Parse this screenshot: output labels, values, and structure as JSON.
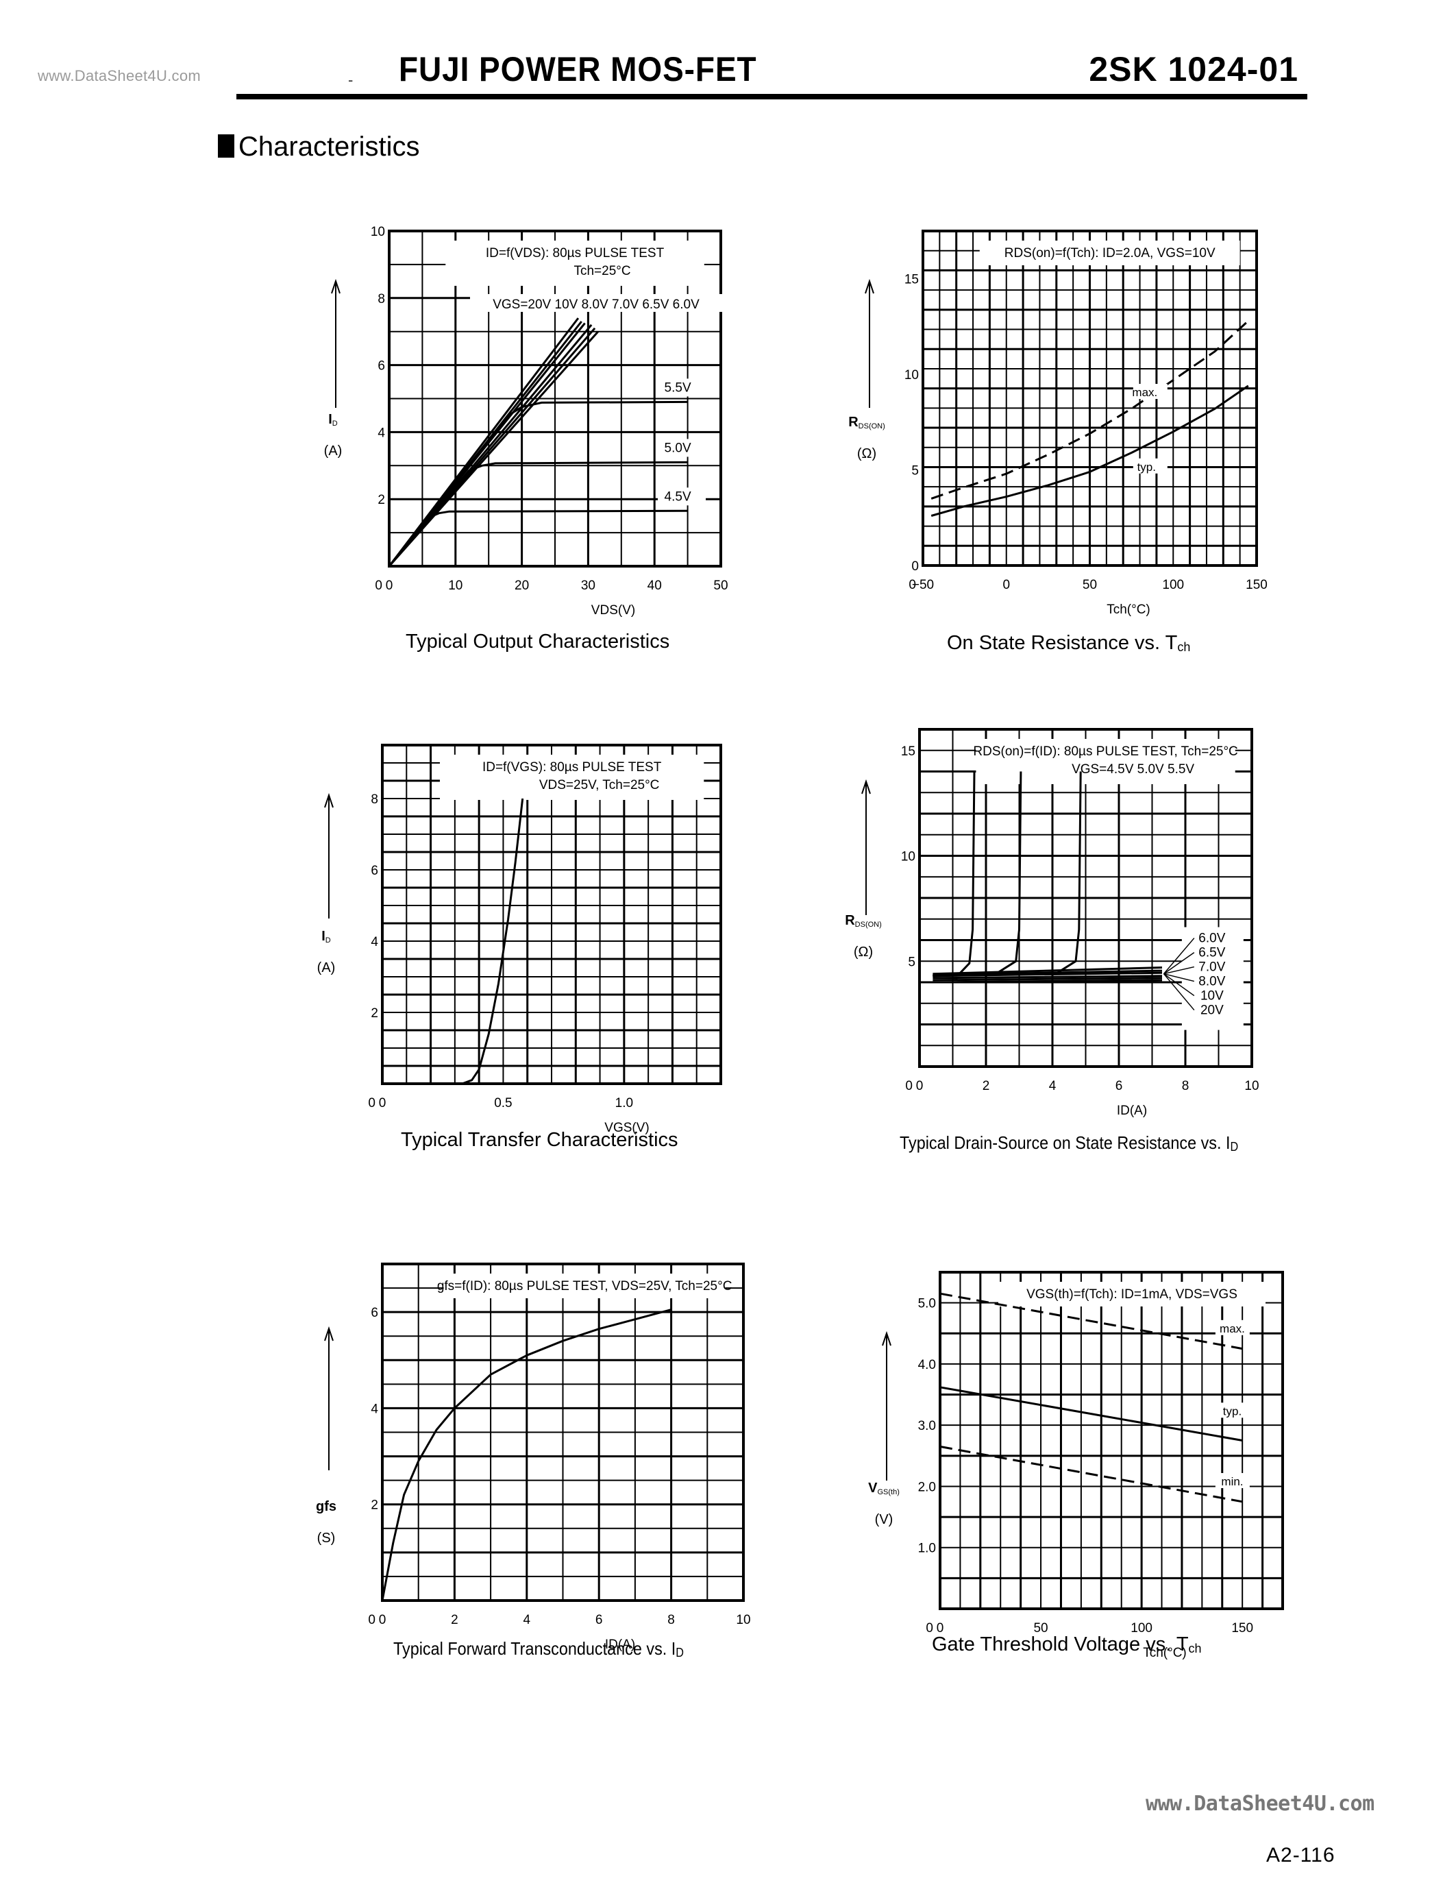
{
  "header": {
    "watermark": "www.DataSheet4U.com",
    "title": "FUJI POWER MOS-FET",
    "part_number": "2SK 1024-01"
  },
  "section": {
    "title": "Characteristics"
  },
  "footer": {
    "watermark": "www.DataSheet4U.com",
    "page_number": "A2-116"
  },
  "captions": {
    "output": "Typical Output Characteristics",
    "on_state_temp": "On State Resistance vs. T",
    "on_state_temp_sub": "ch",
    "transfer": "Typical Transfer Characteristics",
    "drain_source": "Typical Drain-Source on State Resistance vs. I",
    "drain_source_sub": "D",
    "transconductance": "Typical Forward Transconductance vs. I",
    "transconductance_sub": "D",
    "gate_threshold": "Gate Threshold Voltage vs. T",
    "gate_threshold_sub": "ch"
  },
  "chart_data": [
    {
      "id": "output",
      "type": "line",
      "title": "Typical Output Characteristics",
      "annotation": [
        "ID=f(VDS): 80µs PULSE TEST",
        "Tch=25°C"
      ],
      "xlabel": "VDS(V)",
      "ylabel": "ID (A)",
      "xlim": [
        0,
        50
      ],
      "ylim": [
        0,
        10
      ],
      "xticks": [
        0,
        10,
        20,
        30,
        40,
        50
      ],
      "yticks": [
        2,
        4,
        6,
        8,
        10
      ],
      "grid": true,
      "legend_label": "VGS=20V 10V 8.0V 7.0V 6.5V 6.0V",
      "series": [
        {
          "name": "VGS=20V",
          "x": [
            0,
            28.5
          ],
          "y": [
            0,
            7.4
          ]
        },
        {
          "name": "VGS=10V",
          "x": [
            0,
            29
          ],
          "y": [
            0,
            7.3
          ]
        },
        {
          "name": "VGS=8.0V",
          "x": [
            0,
            29.5
          ],
          "y": [
            0,
            7.25
          ]
        },
        {
          "name": "VGS=7.0V",
          "x": [
            0,
            30.5
          ],
          "y": [
            0,
            7.2
          ]
        },
        {
          "name": "VGS=6.5V",
          "x": [
            0,
            31
          ],
          "y": [
            0,
            7.1
          ]
        },
        {
          "name": "VGS=6.0V",
          "x": [
            0,
            31.5
          ],
          "y": [
            0,
            7.0
          ]
        },
        {
          "name": "VGS=5.5V",
          "x": [
            0,
            18,
            20,
            23,
            45
          ],
          "y": [
            0,
            4.5,
            4.75,
            4.88,
            4.9
          ]
        },
        {
          "name": "VGS=5.0V",
          "x": [
            0,
            12,
            14,
            16,
            45
          ],
          "y": [
            0,
            2.85,
            3.0,
            3.07,
            3.1
          ]
        },
        {
          "name": "VGS=4.5V",
          "x": [
            0,
            6,
            7.5,
            9,
            45
          ],
          "y": [
            0,
            1.45,
            1.58,
            1.63,
            1.65
          ]
        }
      ]
    },
    {
      "id": "on_state_temp",
      "type": "line",
      "title": "On State Resistance vs. Tch",
      "annotation": "RDS(on)=f(Tch): ID=2.0A, VGS=10V",
      "xlabel": "Tch(°C)",
      "ylabel": "RDS(ON) (Ω)",
      "xlim": [
        -50,
        150
      ],
      "ylim": [
        0,
        17.5
      ],
      "xticks": [
        -50,
        0,
        50,
        100,
        150
      ],
      "yticks": [
        0,
        5,
        10,
        15
      ],
      "grid": true,
      "series": [
        {
          "name": "max.",
          "style": "dashed",
          "x": [
            -45,
            -25,
            0,
            25,
            50,
            75,
            100,
            125,
            145
          ],
          "y": [
            3.5,
            4.1,
            4.8,
            5.8,
            6.9,
            8.2,
            9.7,
            11.2,
            12.8
          ]
        },
        {
          "name": "typ.",
          "style": "solid",
          "x": [
            -45,
            -25,
            0,
            25,
            50,
            75,
            100,
            125,
            145
          ],
          "y": [
            2.6,
            3.1,
            3.6,
            4.2,
            4.9,
            5.9,
            7.0,
            8.2,
            9.4
          ]
        }
      ]
    },
    {
      "id": "transfer",
      "type": "line",
      "title": "Typical Transfer Characteristics",
      "annotation": [
        "ID=f(VGS): 80µs PULSE TEST",
        "VDS=25V, Tch=25°C"
      ],
      "xlabel": "VGS(V)",
      "ylabel": "ID (A)",
      "xlim": [
        0,
        1.4
      ],
      "ylim": [
        0,
        9.5
      ],
      "xticks": [
        0,
        0.5,
        1.0
      ],
      "yticks": [
        2,
        4,
        6,
        8
      ],
      "grid": true,
      "series": [
        {
          "name": "ID",
          "x": [
            0.33,
            0.37,
            0.4,
            0.44,
            0.48,
            0.52,
            0.55,
            0.58
          ],
          "y": [
            0,
            0.1,
            0.4,
            1.4,
            2.8,
            4.6,
            6.2,
            8.0
          ]
        }
      ]
    },
    {
      "id": "drain_source",
      "type": "line",
      "title": "Typical Drain-Source on State Resistance vs. ID",
      "annotation": [
        "RDS(on)=f(ID): 80µs PULSE TEST, Tch=25°C",
        "VGS=4.5V 5.0V 5.5V"
      ],
      "xlabel": "ID(A)",
      "ylabel": "RDS(ON) (Ω)",
      "xlim": [
        0,
        10
      ],
      "ylim": [
        0,
        16
      ],
      "xticks": [
        0,
        2,
        4,
        6,
        8,
        10
      ],
      "yticks": [
        5,
        10,
        15
      ],
      "grid": true,
      "series": [
        {
          "name": "VGS=4.5V",
          "x": [
            0.4,
            1.2,
            1.5,
            1.6,
            1.65
          ],
          "y": [
            4.3,
            4.4,
            4.9,
            6.5,
            14
          ]
        },
        {
          "name": "VGS=5.0V",
          "x": [
            0.4,
            2.3,
            2.9,
            3.0,
            3.05
          ],
          "y": [
            4.3,
            4.4,
            5.0,
            6.5,
            14
          ]
        },
        {
          "name": "VGS=5.5V",
          "x": [
            0.4,
            4.1,
            4.7,
            4.8,
            4.85
          ],
          "y": [
            4.3,
            4.4,
            5.0,
            6.5,
            14
          ]
        },
        {
          "name": "VGS=6.0V",
          "x": [
            0.4,
            7.3
          ],
          "y": [
            4.4,
            4.7
          ]
        },
        {
          "name": "VGS=6.5V",
          "x": [
            0.4,
            7.3
          ],
          "y": [
            4.35,
            4.55
          ]
        },
        {
          "name": "VGS=7.0V",
          "x": [
            0.4,
            7.3
          ],
          "y": [
            4.3,
            4.45
          ]
        },
        {
          "name": "VGS=8.0V",
          "x": [
            0.4,
            7.3
          ],
          "y": [
            4.2,
            4.3
          ]
        },
        {
          "name": "VGS=10V",
          "x": [
            0.4,
            7.3
          ],
          "y": [
            4.1,
            4.2
          ]
        },
        {
          "name": "VGS=20V",
          "x": [
            0.4,
            7.3
          ],
          "y": [
            4.0,
            4.1
          ]
        }
      ],
      "right_labels": [
        "6.0V",
        "6.5V",
        "7.0V",
        "8.0V",
        "10V",
        "20V"
      ]
    },
    {
      "id": "transconductance",
      "type": "line",
      "title": "Typical Forward Transconductance vs. ID",
      "annotation": "gfs=f(ID): 80µs PULSE TEST, VDS=25V, Tch=25°C",
      "xlabel": "ID(A)",
      "ylabel": "gfs (S)",
      "xlim": [
        0,
        10
      ],
      "ylim": [
        0,
        7
      ],
      "xticks": [
        0,
        2,
        4,
        6,
        8,
        10
      ],
      "yticks": [
        2,
        4,
        6
      ],
      "grid": true,
      "series": [
        {
          "name": "gfs",
          "x": [
            0,
            0.3,
            0.6,
            1.0,
            1.5,
            2.0,
            3.0,
            4.0,
            5.0,
            6.0,
            7.0,
            8.0
          ],
          "y": [
            0,
            1.2,
            2.2,
            2.9,
            3.55,
            4.0,
            4.7,
            5.1,
            5.4,
            5.65,
            5.85,
            6.05
          ]
        }
      ]
    },
    {
      "id": "gate_threshold",
      "type": "line",
      "title": "Gate Threshold Voltage vs. Tch",
      "annotation": "VGS(th)=f(Tch): ID=1mA, VDS=VGS",
      "xlabel": "Tch(°C)",
      "ylabel": "VGS(th) (V)",
      "xlim": [
        0,
        170
      ],
      "ylim": [
        0,
        5.5
      ],
      "xticks": [
        0,
        50,
        100,
        150
      ],
      "yticks": [
        1.0,
        2.0,
        3.0,
        4.0,
        5.0
      ],
      "grid": true,
      "series": [
        {
          "name": "max.",
          "style": "dashed",
          "x": [
            0,
            150
          ],
          "y": [
            5.15,
            4.25
          ]
        },
        {
          "name": "typ.",
          "style": "solid",
          "x": [
            0,
            150
          ],
          "y": [
            3.62,
            2.75
          ]
        },
        {
          "name": "min.",
          "style": "dashed",
          "x": [
            0,
            150
          ],
          "y": [
            2.65,
            1.75
          ]
        }
      ]
    }
  ]
}
